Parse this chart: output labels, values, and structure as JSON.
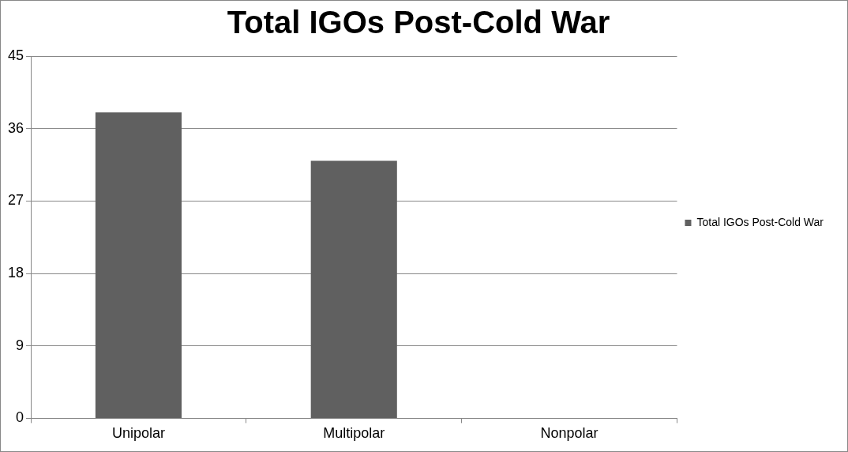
{
  "chart_data": {
    "type": "bar",
    "title": "Total IGOs Post-Cold War",
    "categories": [
      "Unipolar",
      "Multipolar",
      "Nonpolar"
    ],
    "series": [
      {
        "name": "Total IGOs Post-Cold War",
        "color": "#606060",
        "values": [
          38,
          32,
          0
        ]
      }
    ],
    "ylim": [
      0,
      45
    ],
    "yticks": [
      0,
      9,
      18,
      27,
      36,
      45
    ],
    "grid": "y",
    "legend": "right"
  }
}
